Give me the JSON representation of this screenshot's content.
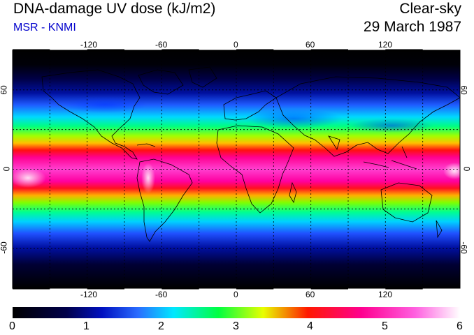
{
  "header": {
    "title": "DNA-damage UV dose (kJ/m2)",
    "source": "MSR - KNMI",
    "sky_condition": "Clear-sky",
    "date": "29 March 1987"
  },
  "map": {
    "projection": "equirectangular",
    "lon_range": [
      -180,
      180
    ],
    "lat_range": [
      -90,
      90
    ],
    "grid": true,
    "lon_ticks": [
      "-120",
      "-60",
      "0",
      "60",
      "120"
    ],
    "lat_ticks_left": [
      "60",
      "0",
      "-60"
    ],
    "lat_ticks_right": [
      "60",
      "0",
      "-60"
    ]
  },
  "colorbar": {
    "labels": [
      "0",
      "1",
      "2",
      "3",
      "4",
      "5",
      "6"
    ],
    "min": 0,
    "max": 6,
    "colors": [
      "#000000",
      "#000080",
      "#0055ff",
      "#00ffff",
      "#00ff00",
      "#ffff00",
      "#ff0000",
      "#ff00aa",
      "#ffffff"
    ]
  }
}
